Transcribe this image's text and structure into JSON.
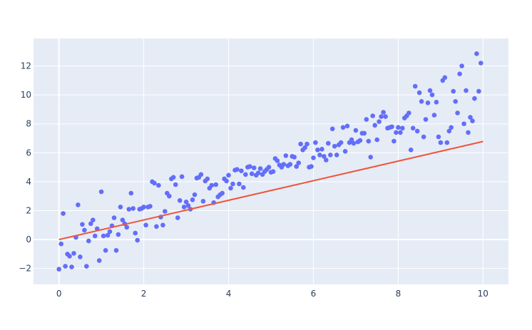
{
  "chart_data": {
    "type": "scatter",
    "title": "",
    "xlabel": "",
    "ylabel": "",
    "xlim": [
      -0.6,
      10.6
    ],
    "ylim": [
      -3.1,
      13.9
    ],
    "grid": true,
    "legend": "none",
    "background_color": "#e5ecf6",
    "x_ticks": [
      0,
      2,
      4,
      6,
      8,
      10
    ],
    "y_ticks": [
      -2,
      0,
      2,
      4,
      6,
      8,
      10,
      12
    ],
    "x_tick_labels": [
      "0",
      "2",
      "4",
      "6",
      "8",
      "10"
    ],
    "y_tick_labels": [
      "−2",
      "0",
      "2",
      "4",
      "6",
      "8",
      "10",
      "12"
    ],
    "series": [
      {
        "mode": "markers",
        "color": "#636efa",
        "points": [
          [
            0.0,
            -2.05
          ],
          [
            0.05,
            -0.3
          ],
          [
            0.1,
            1.8
          ],
          [
            0.15,
            -1.85
          ],
          [
            0.2,
            -1.0
          ],
          [
            0.25,
            -1.15
          ],
          [
            0.3,
            -1.9
          ],
          [
            0.35,
            -0.95
          ],
          [
            0.4,
            0.15
          ],
          [
            0.45,
            2.4
          ],
          [
            0.5,
            -1.2
          ],
          [
            0.55,
            1.05
          ],
          [
            0.6,
            0.65
          ],
          [
            0.65,
            -1.85
          ],
          [
            0.7,
            -0.1
          ],
          [
            0.75,
            1.1
          ],
          [
            0.8,
            1.35
          ],
          [
            0.85,
            0.25
          ],
          [
            0.9,
            0.75
          ],
          [
            0.95,
            -1.45
          ],
          [
            1.0,
            3.3
          ],
          [
            1.05,
            0.25
          ],
          [
            1.1,
            -0.75
          ],
          [
            1.15,
            0.3
          ],
          [
            1.2,
            0.55
          ],
          [
            1.25,
            0.95
          ],
          [
            1.3,
            1.5
          ],
          [
            1.35,
            -0.75
          ],
          [
            1.4,
            0.35
          ],
          [
            1.45,
            2.25
          ],
          [
            1.5,
            1.35
          ],
          [
            1.55,
            1.1
          ],
          [
            1.6,
            0.85
          ],
          [
            1.65,
            2.1
          ],
          [
            1.7,
            3.2
          ],
          [
            1.75,
            2.15
          ],
          [
            1.8,
            0.45
          ],
          [
            1.85,
            -0.05
          ],
          [
            1.9,
            2.1
          ],
          [
            1.95,
            2.15
          ],
          [
            2.0,
            2.25
          ],
          [
            2.05,
            1.0
          ],
          [
            2.1,
            2.25
          ],
          [
            2.15,
            2.3
          ],
          [
            2.2,
            4.0
          ],
          [
            2.25,
            3.9
          ],
          [
            2.3,
            0.9
          ],
          [
            2.35,
            3.75
          ],
          [
            2.4,
            1.55
          ],
          [
            2.45,
            1.0
          ],
          [
            2.5,
            1.95
          ],
          [
            2.55,
            3.2
          ],
          [
            2.6,
            3.0
          ],
          [
            2.65,
            4.2
          ],
          [
            2.7,
            4.3
          ],
          [
            2.75,
            3.8
          ],
          [
            2.8,
            1.5
          ],
          [
            2.85,
            2.7
          ],
          [
            2.9,
            4.35
          ],
          [
            2.95,
            2.25
          ],
          [
            3.0,
            2.6
          ],
          [
            3.05,
            2.35
          ],
          [
            3.1,
            2.1
          ],
          [
            3.15,
            2.75
          ],
          [
            3.2,
            3.1
          ],
          [
            3.25,
            4.25
          ],
          [
            3.3,
            4.3
          ],
          [
            3.35,
            4.5
          ],
          [
            3.4,
            2.65
          ],
          [
            3.45,
            4.05
          ],
          [
            3.5,
            4.2
          ],
          [
            3.55,
            3.55
          ],
          [
            3.6,
            3.75
          ],
          [
            3.65,
            2.55
          ],
          [
            3.7,
            3.8
          ],
          [
            3.75,
            2.95
          ],
          [
            3.8,
            3.1
          ],
          [
            3.85,
            3.2
          ],
          [
            3.9,
            4.2
          ],
          [
            3.95,
            4.05
          ],
          [
            4.0,
            4.45
          ],
          [
            4.05,
            3.55
          ],
          [
            4.1,
            3.85
          ],
          [
            4.15,
            4.8
          ],
          [
            4.2,
            4.85
          ],
          [
            4.25,
            3.85
          ],
          [
            4.3,
            4.75
          ],
          [
            4.35,
            3.6
          ],
          [
            4.4,
            4.5
          ],
          [
            4.45,
            5.0
          ],
          [
            4.5,
            5.05
          ],
          [
            4.55,
            4.55
          ],
          [
            4.6,
            4.95
          ],
          [
            4.65,
            4.45
          ],
          [
            4.7,
            4.6
          ],
          [
            4.75,
            4.9
          ],
          [
            4.8,
            4.5
          ],
          [
            4.85,
            4.7
          ],
          [
            4.9,
            4.85
          ],
          [
            4.95,
            5.0
          ],
          [
            5.0,
            4.65
          ],
          [
            5.05,
            4.7
          ],
          [
            5.1,
            5.6
          ],
          [
            5.15,
            5.45
          ],
          [
            5.2,
            5.15
          ],
          [
            5.25,
            5.0
          ],
          [
            5.3,
            5.2
          ],
          [
            5.35,
            5.8
          ],
          [
            5.4,
            5.1
          ],
          [
            5.45,
            5.2
          ],
          [
            5.5,
            5.75
          ],
          [
            5.55,
            5.7
          ],
          [
            5.6,
            5.05
          ],
          [
            5.65,
            5.3
          ],
          [
            5.7,
            6.6
          ],
          [
            5.75,
            6.2
          ],
          [
            5.8,
            6.35
          ],
          [
            5.85,
            6.6
          ],
          [
            5.9,
            5.0
          ],
          [
            5.95,
            5.05
          ],
          [
            6.0,
            5.65
          ],
          [
            6.05,
            6.7
          ],
          [
            6.1,
            6.2
          ],
          [
            6.15,
            5.85
          ],
          [
            6.2,
            6.25
          ],
          [
            6.25,
            5.75
          ],
          [
            6.3,
            5.5
          ],
          [
            6.35,
            6.65
          ],
          [
            6.4,
            5.85
          ],
          [
            6.45,
            7.65
          ],
          [
            6.5,
            6.45
          ],
          [
            6.55,
            5.85
          ],
          [
            6.6,
            6.55
          ],
          [
            6.65,
            6.7
          ],
          [
            6.7,
            7.75
          ],
          [
            6.75,
            6.1
          ],
          [
            6.8,
            7.85
          ],
          [
            6.85,
            6.7
          ],
          [
            6.9,
            6.9
          ],
          [
            6.95,
            6.65
          ],
          [
            7.0,
            7.55
          ],
          [
            7.05,
            6.75
          ],
          [
            7.1,
            6.85
          ],
          [
            7.15,
            7.35
          ],
          [
            7.2,
            7.35
          ],
          [
            7.25,
            8.3
          ],
          [
            7.3,
            6.8
          ],
          [
            7.35,
            5.7
          ],
          [
            7.4,
            8.55
          ],
          [
            7.45,
            7.9
          ],
          [
            7.5,
            6.9
          ],
          [
            7.55,
            8.15
          ],
          [
            7.6,
            8.5
          ],
          [
            7.65,
            8.8
          ],
          [
            7.7,
            8.5
          ],
          [
            7.75,
            7.7
          ],
          [
            7.8,
            7.75
          ],
          [
            7.85,
            7.8
          ],
          [
            7.9,
            6.8
          ],
          [
            7.95,
            7.4
          ],
          [
            8.0,
            7.75
          ],
          [
            8.05,
            7.4
          ],
          [
            8.1,
            7.7
          ],
          [
            8.15,
            8.4
          ],
          [
            8.2,
            8.55
          ],
          [
            8.25,
            8.75
          ],
          [
            8.3,
            6.2
          ],
          [
            8.35,
            7.7
          ],
          [
            8.4,
            10.6
          ],
          [
            8.45,
            7.5
          ],
          [
            8.5,
            10.15
          ],
          [
            8.55,
            9.55
          ],
          [
            8.6,
            7.1
          ],
          [
            8.65,
            8.3
          ],
          [
            8.7,
            9.45
          ],
          [
            8.75,
            10.3
          ],
          [
            8.8,
            10.0
          ],
          [
            8.85,
            8.6
          ],
          [
            8.9,
            9.5
          ],
          [
            8.95,
            7.1
          ],
          [
            9.0,
            6.7
          ],
          [
            9.05,
            11.0
          ],
          [
            9.1,
            11.2
          ],
          [
            9.15,
            6.7
          ],
          [
            9.2,
            7.5
          ],
          [
            9.25,
            7.75
          ],
          [
            9.3,
            10.25
          ],
          [
            9.35,
            9.55
          ],
          [
            9.4,
            8.75
          ],
          [
            9.45,
            11.45
          ],
          [
            9.5,
            12.0
          ],
          [
            9.55,
            8.0
          ],
          [
            9.6,
            10.3
          ],
          [
            9.65,
            7.4
          ],
          [
            9.7,
            8.45
          ],
          [
            9.75,
            8.2
          ],
          [
            9.8,
            9.75
          ],
          [
            9.85,
            12.85
          ],
          [
            9.9,
            10.25
          ],
          [
            9.95,
            12.2
          ]
        ]
      },
      {
        "mode": "lines",
        "color": "#ef553b",
        "points": [
          [
            0.0,
            0.0
          ],
          [
            10.0,
            6.78
          ]
        ]
      }
    ]
  }
}
